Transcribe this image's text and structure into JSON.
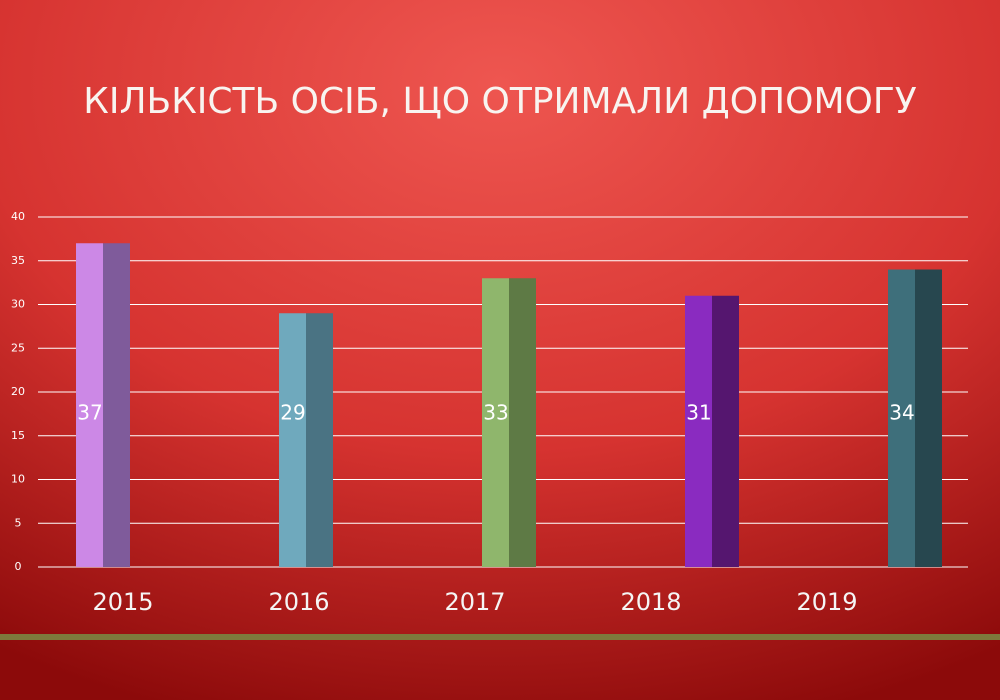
{
  "chart_data": {
    "type": "bar",
    "title": "КІЛЬКІСТЬ ОСІБ, ЩО ОТРИМАЛИ ДОПОМОГУ",
    "categories": [
      "2015",
      "2016",
      "2017",
      "2018",
      "2019"
    ],
    "values": [
      37,
      29,
      33,
      31,
      34
    ],
    "colors": [
      "#cc88e6",
      "#6fa9bd",
      "#8fb66c",
      "#8a2bc0",
      "#3e6f7b"
    ],
    "side_colors": [
      "#7f5b9b",
      "#4a7383",
      "#5e7a45",
      "#55166f",
      "#27474f"
    ],
    "ylim": [
      0,
      40
    ],
    "yticks": [
      0,
      5,
      10,
      15,
      20,
      25,
      30,
      35,
      40
    ],
    "grid": true
  }
}
